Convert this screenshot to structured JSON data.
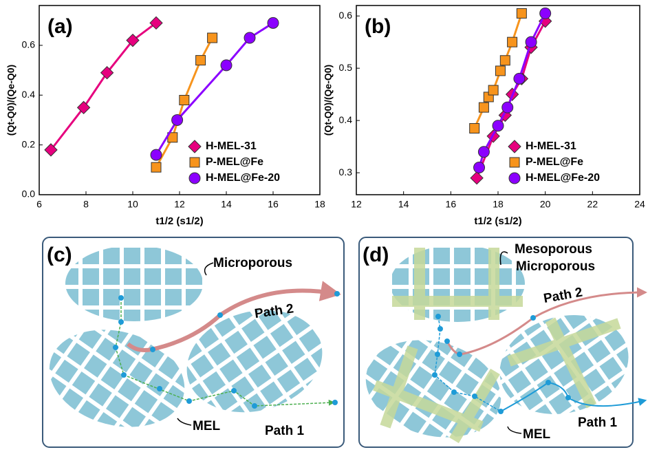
{
  "chart_data": [
    {
      "type": "line",
      "panel_label": "(a)",
      "xlabel": "t1/2 (s1/2)",
      "ylabel": "(Qt-Q0)/(Qe-Q0)",
      "xlim": [
        6,
        18
      ],
      "xticks": [
        6,
        8,
        10,
        12,
        14,
        16,
        18
      ],
      "ylim": [
        0,
        0.76
      ],
      "yticks": [
        {
          "value": 0,
          "label": "0.0"
        },
        0.2,
        0.4,
        0.6
      ],
      "legend": "lower right",
      "series": [
        {
          "name": "H-MEL-31",
          "color": "#e6007e",
          "marker": "diamond",
          "x": [
            6.5,
            7.9,
            8.9,
            10.0,
            11.0
          ],
          "values": [
            0.18,
            0.35,
            0.49,
            0.62,
            0.69
          ]
        },
        {
          "name": "P-MEL@Fe",
          "color": "#f7941d",
          "marker": "square",
          "x": [
            11.0,
            11.7,
            12.2,
            12.9,
            13.4
          ],
          "values": [
            0.11,
            0.23,
            0.38,
            0.54,
            0.63
          ]
        },
        {
          "name": "H-MEL@Fe-20",
          "color": "#8b00ff",
          "marker": "circle",
          "x": [
            11.0,
            11.9,
            14.0,
            15.0,
            16.0
          ],
          "values": [
            0.16,
            0.3,
            0.52,
            0.63,
            0.69
          ]
        }
      ]
    },
    {
      "type": "line",
      "panel_label": "(b)",
      "xlabel": "t1/2 (s1/2)",
      "ylabel": "(Qt-Q0)/(Qe-Q0)",
      "xlim": [
        12,
        24
      ],
      "xticks": [
        12,
        14,
        16,
        18,
        20,
        22,
        24
      ],
      "ylim": [
        0.258,
        0.62
      ],
      "yticks": [
        0.3,
        0.4,
        0.5,
        0.6
      ],
      "legend": "lower right",
      "series": [
        {
          "name": "H-MEL-31",
          "color": "#e6007e",
          "marker": "diamond",
          "x": [
            17.1,
            17.8,
            18.3,
            18.6,
            19.0,
            19.4,
            20.0
          ],
          "values": [
            0.29,
            0.37,
            0.41,
            0.45,
            0.48,
            0.54,
            0.59
          ]
        },
        {
          "name": "P-MEL@Fe",
          "color": "#f7941d",
          "marker": "square",
          "x": [
            17.0,
            17.4,
            17.6,
            17.8,
            18.1,
            18.3,
            18.6,
            19.0
          ],
          "values": [
            0.385,
            0.425,
            0.445,
            0.458,
            0.495,
            0.515,
            0.55,
            0.605
          ]
        },
        {
          "name": "H-MEL@Fe-20",
          "color": "#8b00ff",
          "marker": "circle",
          "x": [
            17.2,
            17.4,
            18.0,
            18.4,
            18.9,
            19.4,
            20.0
          ],
          "values": [
            0.31,
            0.34,
            0.39,
            0.425,
            0.48,
            0.55,
            0.605
          ]
        }
      ]
    }
  ],
  "diagrams": [
    {
      "panel_label": "(c)",
      "labels": [
        "Microporous",
        "Path 2",
        "MEL",
        "Path 1"
      ]
    },
    {
      "panel_label": "(d)",
      "labels": [
        "Mesoporous",
        "Microporous",
        "Path 2",
        "MEL",
        "Path 1"
      ]
    }
  ]
}
